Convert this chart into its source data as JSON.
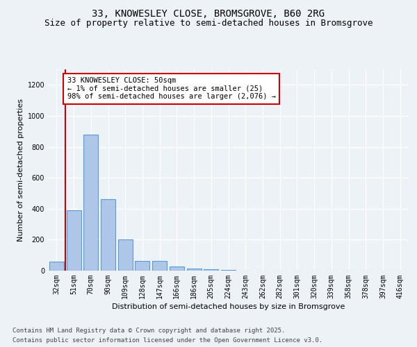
{
  "title_line1": "33, KNOWESLEY CLOSE, BROMSGROVE, B60 2RG",
  "title_line2": "Size of property relative to semi-detached houses in Bromsgrove",
  "xlabel": "Distribution of semi-detached houses by size in Bromsgrove",
  "ylabel": "Number of semi-detached properties",
  "categories": [
    "32sqm",
    "51sqm",
    "70sqm",
    "90sqm",
    "109sqm",
    "128sqm",
    "147sqm",
    "166sqm",
    "186sqm",
    "205sqm",
    "224sqm",
    "243sqm",
    "262sqm",
    "282sqm",
    "301sqm",
    "320sqm",
    "339sqm",
    "358sqm",
    "378sqm",
    "397sqm",
    "416sqm"
  ],
  "values": [
    60,
    390,
    880,
    460,
    200,
    65,
    65,
    25,
    15,
    7,
    5,
    2,
    1,
    0.5,
    0.3,
    0.2,
    0.1,
    0.1,
    0.1,
    0.1,
    0.1
  ],
  "bar_color": "#aec6e8",
  "bar_edgecolor": "#5b9bd5",
  "highlight_line_color": "#cc0000",
  "annotation_text": "33 KNOWESLEY CLOSE: 50sqm\n← 1% of semi-detached houses are smaller (25)\n98% of semi-detached houses are larger (2,076) →",
  "annotation_box_edgecolor": "#cc0000",
  "ylim": [
    0,
    1300
  ],
  "yticks": [
    0,
    200,
    400,
    600,
    800,
    1000,
    1200
  ],
  "footer_line1": "Contains HM Land Registry data © Crown copyright and database right 2025.",
  "footer_line2": "Contains public sector information licensed under the Open Government Licence v3.0.",
  "background_color": "#edf2f7",
  "plot_background_color": "#edf2f7",
  "grid_color": "#ffffff",
  "title_fontsize": 10,
  "subtitle_fontsize": 9,
  "axis_label_fontsize": 8,
  "tick_fontsize": 7,
  "footer_fontsize": 6.5,
  "annotation_fontsize": 7.5
}
